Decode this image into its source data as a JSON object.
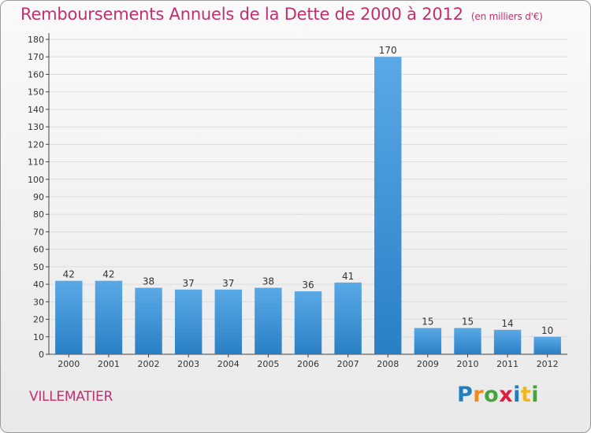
{
  "header": {
    "title": "Remboursements Annuels de la Dette de 2000 à 2012",
    "subtitle": "(en milliers d'€)"
  },
  "footer": {
    "town": "VILLEMATIER",
    "logo_text": "Proxiti"
  },
  "colors": {
    "title": "#c0306f",
    "bar_top": "#5aa9e6",
    "bar_bottom": "#2a7fc4"
  },
  "chart_data": {
    "type": "bar",
    "title": "Remboursements Annuels de la Dette de 2000 à 2012",
    "subtitle": "(en milliers d'€)",
    "xlabel": "",
    "ylabel": "",
    "categories": [
      "2000",
      "2001",
      "2002",
      "2003",
      "2004",
      "2005",
      "2006",
      "2007",
      "2008",
      "2009",
      "2010",
      "2011",
      "2012"
    ],
    "values": [
      42,
      42,
      38,
      37,
      37,
      38,
      36,
      41,
      170,
      15,
      15,
      14,
      10
    ],
    "ylim": [
      0,
      180
    ],
    "ytick_step": 10,
    "grid": true,
    "data_labels": true,
    "legend": "none"
  }
}
